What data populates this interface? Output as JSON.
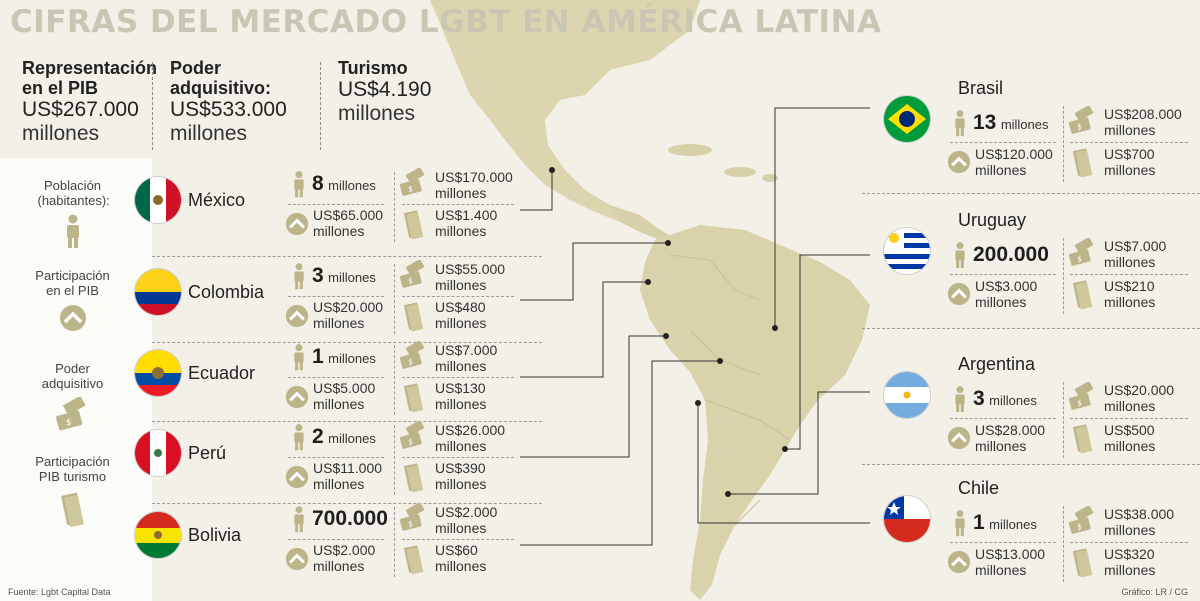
{
  "title": "CIFRAS DEL MERCADO LGBT EN AMÉRICA     LATINA",
  "summary": [
    {
      "label": "Representación en el PIB",
      "value": "US$267.000",
      "unit": "millones"
    },
    {
      "label": "Poder adquisitivo:",
      "value": "US$533.000",
      "unit": "millones"
    },
    {
      "label": "Turismo",
      "value": "US$4.190",
      "unit": "millones"
    }
  ],
  "legend": [
    {
      "label": "Población (habitantes):",
      "icon": "person-icon"
    },
    {
      "label": "Participación en el PIB",
      "icon": "chevron-up-icon"
    },
    {
      "label": "Poder adquisitivo",
      "icon": "money-icon"
    },
    {
      "label": "Participación PIB turismo",
      "icon": "ticket-icon"
    }
  ],
  "countries_left": [
    {
      "name": "México",
      "flag": "mexico",
      "pop": "8",
      "pop_unit": "millones",
      "pib": "US$65.000",
      "pib_unit": "millones",
      "poder": "US$170.000",
      "poder_unit": "millones",
      "turismo": "US$1.400",
      "turismo_unit": "millones"
    },
    {
      "name": "Colombia",
      "flag": "colombia",
      "pop": "3",
      "pop_unit": "millones",
      "pib": "US$20.000",
      "pib_unit": "millones",
      "poder": "US$55.000",
      "poder_unit": "millones",
      "turismo": "US$480",
      "turismo_unit": "millones"
    },
    {
      "name": "Ecuador",
      "flag": "ecuador",
      "pop": "1",
      "pop_unit": "millones",
      "pib": "US$5.000",
      "pib_unit": "millones",
      "poder": "US$7.000",
      "poder_unit": "millones",
      "turismo": "US$130",
      "turismo_unit": "millones"
    },
    {
      "name": "Perú",
      "flag": "peru",
      "pop": "2",
      "pop_unit": "millones",
      "pib": "US$11.000",
      "pib_unit": "millones",
      "poder": "US$26.000",
      "poder_unit": "millones",
      "turismo": "US$390",
      "turismo_unit": "millones"
    },
    {
      "name": "Bolivia",
      "flag": "bolivia",
      "pop": "700.000",
      "pop_unit": "",
      "pib": "US$2.000",
      "pib_unit": "millones",
      "poder": "US$2.000",
      "poder_unit": "millones",
      "turismo": "US$60",
      "turismo_unit": "millones"
    }
  ],
  "countries_right": [
    {
      "name": "Brasil",
      "flag": "brasil",
      "pop": "13",
      "pop_unit": "millones",
      "pib": "US$120.000",
      "pib_unit": "millones",
      "poder": "US$208.000",
      "poder_unit": "millones",
      "turismo": "US$700",
      "turismo_unit": "millones"
    },
    {
      "name": "Uruguay",
      "flag": "uruguay",
      "pop": "200.000",
      "pop_unit": "",
      "pib": "US$3.000",
      "pib_unit": "millones",
      "poder": "US$7.000",
      "poder_unit": "millones",
      "turismo": "US$210",
      "turismo_unit": "millones"
    },
    {
      "name": "Argentina",
      "flag": "argentina",
      "pop": "3",
      "pop_unit": "millones",
      "pib": "US$28.000",
      "pib_unit": "millones",
      "poder": "US$20.000",
      "poder_unit": "millones",
      "turismo": "US$500",
      "turismo_unit": "millones"
    },
    {
      "name": "Chile",
      "flag": "chile",
      "pop": "1",
      "pop_unit": "millones",
      "pib": "US$13.000",
      "pib_unit": "millones",
      "poder": "US$38.000",
      "poder_unit": "millones",
      "turismo": "US$320",
      "turismo_unit": "millones"
    }
  ],
  "footer": {
    "source": "Fuente: Lgbt Capital Data",
    "credit": "Gráfico: LR / CG"
  },
  "colors": {
    "map_land": "#dcd6b0",
    "map_sea": "#f3f1e7",
    "title": "#c9c7b4",
    "icon": "#bdb58a"
  }
}
